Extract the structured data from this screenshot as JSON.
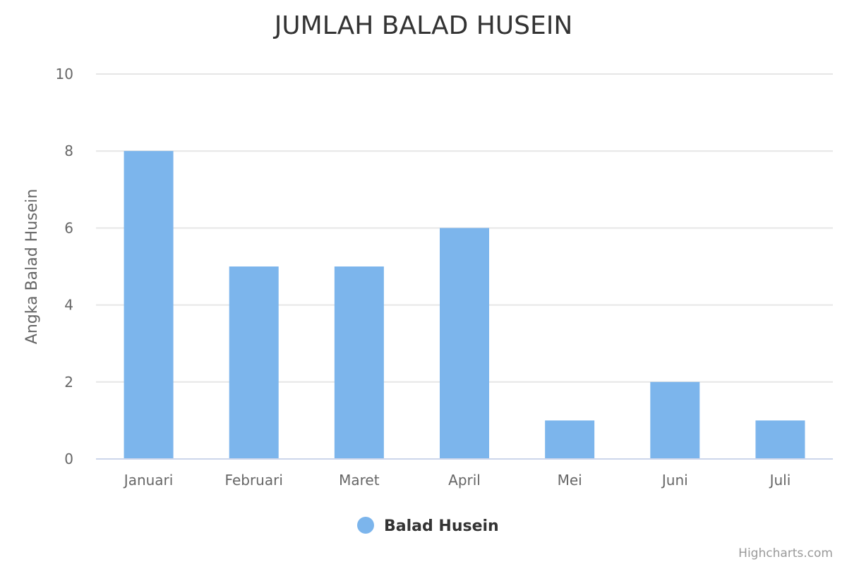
{
  "chart_data": {
    "type": "bar",
    "title": "JUMLAH BALAD HUSEIN",
    "xlabel": "",
    "ylabel": "Angka Balad Husein",
    "categories": [
      "Januari",
      "Februari",
      "Maret",
      "April",
      "Mei",
      "Juni",
      "Juli"
    ],
    "series": [
      {
        "name": "Balad Husein",
        "values": [
          8,
          5,
          5,
          6,
          1,
          2,
          1
        ],
        "color": "#7cb5ec"
      }
    ],
    "ylim": [
      0,
      10
    ],
    "yticks": [
      "0",
      "2",
      "4",
      "6",
      "8",
      "10"
    ],
    "grid": true,
    "legend_position": "bottom-center"
  },
  "credits": "Highcharts.com",
  "colors": {
    "bar": "#7cb5ec",
    "grid": "#e6e6e6",
    "axis": "#ccd6eb"
  }
}
